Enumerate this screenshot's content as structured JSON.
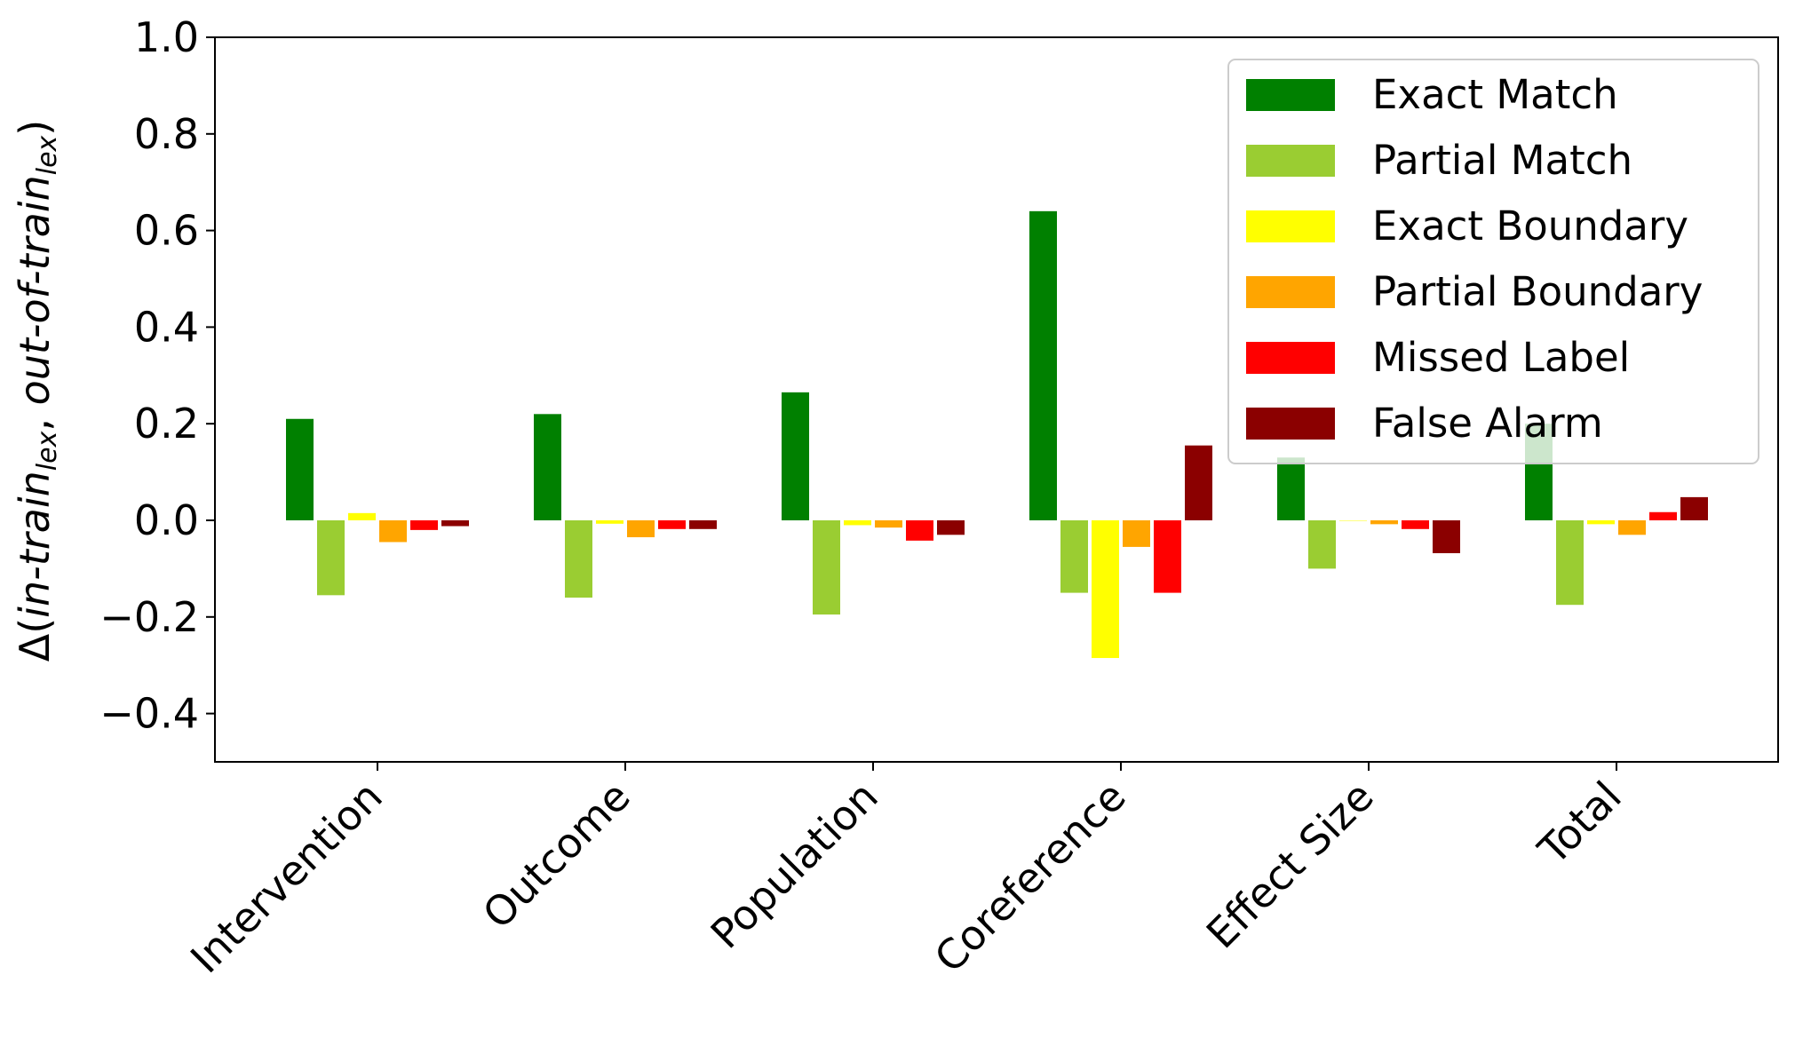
{
  "chart_data": {
    "type": "bar",
    "ylabel": {
      "prefix": "Δ(",
      "part1": "in-train",
      "sub1": "lex",
      "sep": ", ",
      "part2": "out-of-train",
      "sub2": "lex",
      "suffix": ")"
    },
    "ylim": [
      -0.5,
      1.0
    ],
    "yticks": [
      -0.4,
      -0.2,
      0.0,
      0.2,
      0.4,
      0.6,
      0.8,
      1.0
    ],
    "ytick_labels": [
      "−0.4",
      "−0.2",
      "0.0",
      "0.2",
      "0.4",
      "0.6",
      "0.8",
      "1.0"
    ],
    "categories": [
      "Intervention",
      "Outcome",
      "Population",
      "Coreference",
      "Effect Size",
      "Total"
    ],
    "legend_position": "top-right",
    "grid": false,
    "series": [
      {
        "name": "Exact Match",
        "color": "#008000",
        "values": [
          0.21,
          0.22,
          0.265,
          0.64,
          0.13,
          0.2
        ]
      },
      {
        "name": "Partial Match",
        "color": "#9acd32",
        "values": [
          -0.155,
          -0.16,
          -0.195,
          -0.15,
          -0.1,
          -0.175
        ]
      },
      {
        "name": "Exact Boundary",
        "color": "#ffff00",
        "values": [
          0.015,
          -0.007,
          -0.01,
          -0.285,
          0.0,
          -0.008
        ]
      },
      {
        "name": "Partial Boundary",
        "color": "#ffa500",
        "values": [
          -0.045,
          -0.035,
          -0.015,
          -0.055,
          -0.008,
          -0.03
        ]
      },
      {
        "name": "Missed Label",
        "color": "#ff0000",
        "values": [
          -0.02,
          -0.018,
          -0.042,
          -0.15,
          -0.018,
          0.017
        ]
      },
      {
        "name": "False Alarm",
        "color": "#8b0000",
        "values": [
          -0.012,
          -0.018,
          -0.03,
          0.155,
          -0.068,
          0.048
        ]
      }
    ]
  }
}
